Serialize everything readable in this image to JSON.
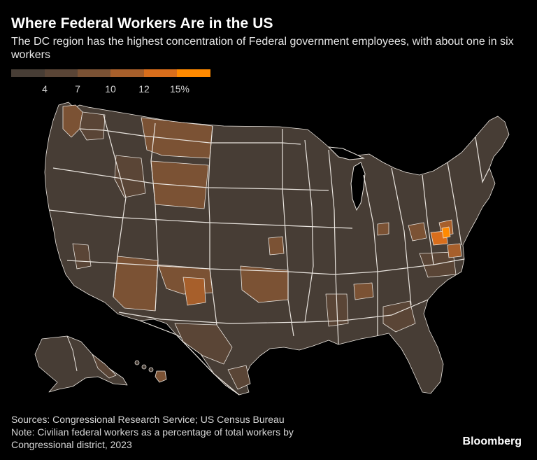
{
  "title": "Where Federal Workers Are in the US",
  "subtitle": "The DC region has the highest concentration of Federal government employees, with about one in six workers",
  "legend": {
    "labels": [
      "4",
      "7",
      "10",
      "12",
      "15%"
    ],
    "colors": [
      "#473d35",
      "#5a4536",
      "#7b5234",
      "#a75f2b",
      "#d96e1c",
      "#ff8a00"
    ]
  },
  "colors": {
    "base": "#473d35",
    "low": "#5a4536",
    "mid": "#7b5234",
    "high": "#a75f2b",
    "higher": "#d96e1c",
    "top": "#ff8a00",
    "border": "#e9e4de"
  },
  "footer": {
    "sources": "Sources: Congressional Research Service; US Census Bureau",
    "note_line1": "Note: Civilian federal workers as a percentage of total workers by",
    "note_line2": "Congressional district, 2023"
  },
  "brand": "Bloomberg"
}
